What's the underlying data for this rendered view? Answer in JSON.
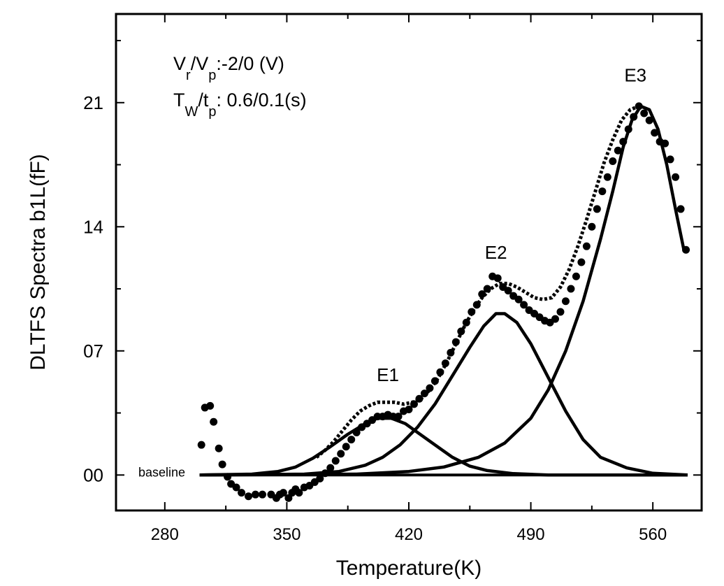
{
  "chart_data": {
    "type": "scatter",
    "title": "",
    "xlabel": "Temperature(K)",
    "ylabel": "DLTFS Spectra b1L(fF)",
    "xlim": [
      252,
      588
    ],
    "ylim": [
      -2,
      26
    ],
    "x_ticks": [
      280,
      350,
      420,
      490,
      560
    ],
    "y_ticks": [
      {
        "value": 0,
        "label": "00"
      },
      {
        "value": 7,
        "label": "07"
      },
      {
        "value": 14,
        "label": "14"
      },
      {
        "value": 21,
        "label": "21"
      }
    ],
    "grid": false,
    "annotations": {
      "conditions": [
        {
          "main": [
            "V",
            "/V",
            ":-2/0 (V)"
          ],
          "subs": [
            "r",
            "p"
          ]
        },
        {
          "main": [
            "T",
            "/t",
            ": 0.6/0.1(s)"
          ],
          "subs": [
            "W",
            "p"
          ]
        }
      ],
      "peaks": [
        {
          "label": "E1",
          "x": 408,
          "y": 5.3
        },
        {
          "label": "E2",
          "x": 470,
          "y": 12.2
        },
        {
          "label": "E3",
          "x": 550,
          "y": 22.2
        }
      ],
      "baseline_label": "baseline"
    },
    "series": [
      {
        "kind": "measured",
        "marker": "circle",
        "points": [
          [
            301,
            1.7
          ],
          [
            303,
            3.8
          ],
          [
            306,
            3.9
          ],
          [
            308,
            3.0
          ],
          [
            311,
            1.5
          ],
          [
            313,
            0.6
          ],
          [
            316,
            -0.1
          ],
          [
            318,
            -0.5
          ],
          [
            321,
            -0.7
          ],
          [
            324,
            -1.0
          ],
          [
            328,
            -1.2
          ],
          [
            332,
            -1.1
          ],
          [
            336,
            -1.1
          ],
          [
            341,
            -1.1
          ],
          [
            344,
            -1.3
          ],
          [
            346,
            -1.1
          ],
          [
            348,
            -1.0
          ],
          [
            351,
            -1.3
          ],
          [
            353,
            -1.0
          ],
          [
            355,
            -0.8
          ],
          [
            357,
            -1.0
          ],
          [
            360,
            -0.7
          ],
          [
            363,
            -0.6
          ],
          [
            366,
            -0.4
          ],
          [
            369,
            -0.2
          ],
          [
            372,
            0.1
          ],
          [
            375,
            0.4
          ],
          [
            378,
            0.8
          ],
          [
            381,
            1.2
          ],
          [
            384,
            1.6
          ],
          [
            387,
            2.0
          ],
          [
            390,
            2.4
          ],
          [
            393,
            2.7
          ],
          [
            396,
            2.9
          ],
          [
            399,
            3.1
          ],
          [
            402,
            3.3
          ],
          [
            405,
            3.3
          ],
          [
            408,
            3.4
          ],
          [
            411,
            3.3
          ],
          [
            414,
            3.3
          ],
          [
            417,
            3.6
          ],
          [
            420,
            3.7
          ],
          [
            423,
            4.0
          ],
          [
            426,
            4.3
          ],
          [
            429,
            4.6
          ],
          [
            432,
            4.9
          ],
          [
            435,
            5.3
          ],
          [
            438,
            5.8
          ],
          [
            441,
            6.3
          ],
          [
            444,
            6.9
          ],
          [
            447,
            7.5
          ],
          [
            450,
            8.1
          ],
          [
            453,
            8.6
          ],
          [
            456,
            9.2
          ],
          [
            459,
            9.6
          ],
          [
            462,
            10.2
          ],
          [
            465,
            10.5
          ],
          [
            468,
            11.2
          ],
          [
            471,
            11.1
          ],
          [
            474,
            10.6
          ],
          [
            477,
            10.4
          ],
          [
            480,
            10.1
          ],
          [
            483,
            9.9
          ],
          [
            486,
            9.6
          ],
          [
            489,
            9.3
          ],
          [
            492,
            9.1
          ],
          [
            495,
            8.9
          ],
          [
            498,
            8.7
          ],
          [
            501,
            8.6
          ],
          [
            504,
            8.8
          ],
          [
            507,
            9.2
          ],
          [
            510,
            9.8
          ],
          [
            513,
            10.5
          ],
          [
            516,
            11.2
          ],
          [
            519,
            12.0
          ],
          [
            522,
            12.9
          ],
          [
            525,
            14.0
          ],
          [
            528,
            15.0
          ],
          [
            531,
            16.0
          ],
          [
            534,
            16.8
          ],
          [
            537,
            17.7
          ],
          [
            540,
            18.3
          ],
          [
            543,
            18.8
          ],
          [
            546,
            19.5
          ],
          [
            549,
            20.2
          ],
          [
            552,
            20.8
          ],
          [
            555,
            20.4
          ],
          [
            558,
            20.0
          ],
          [
            561,
            19.3
          ],
          [
            564,
            18.8
          ],
          [
            567,
            18.7
          ],
          [
            570,
            17.8
          ],
          [
            573,
            16.8
          ],
          [
            576,
            15.0
          ],
          [
            579,
            12.7
          ]
        ]
      },
      {
        "kind": "fit-sum",
        "line": "dotted",
        "points": [
          [
            367,
            1.0
          ],
          [
            372,
            1.4
          ],
          [
            377,
            1.9
          ],
          [
            382,
            2.5
          ],
          [
            387,
            3.1
          ],
          [
            392,
            3.6
          ],
          [
            397,
            3.9
          ],
          [
            402,
            4.1
          ],
          [
            407,
            4.1
          ],
          [
            412,
            4.1
          ],
          [
            417,
            4.0
          ],
          [
            422,
            4.1
          ],
          [
            427,
            4.3
          ],
          [
            432,
            4.8
          ],
          [
            437,
            5.5
          ],
          [
            442,
            6.4
          ],
          [
            447,
            7.4
          ],
          [
            452,
            8.4
          ],
          [
            457,
            9.3
          ],
          [
            462,
            10.0
          ],
          [
            467,
            10.5
          ],
          [
            472,
            10.8
          ],
          [
            477,
            10.8
          ],
          [
            482,
            10.6
          ],
          [
            487,
            10.3
          ],
          [
            492,
            10.0
          ],
          [
            497,
            9.9
          ],
          [
            502,
            10.0
          ],
          [
            507,
            10.6
          ],
          [
            512,
            11.6
          ],
          [
            517,
            12.9
          ],
          [
            522,
            14.4
          ],
          [
            527,
            16.0
          ],
          [
            532,
            17.6
          ],
          [
            537,
            18.9
          ],
          [
            542,
            20.0
          ],
          [
            547,
            20.6
          ],
          [
            552,
            20.8
          ]
        ]
      },
      {
        "kind": "fit",
        "name": "E1",
        "line": "solid",
        "points": [
          [
            300,
            0.0
          ],
          [
            330,
            0.05
          ],
          [
            345,
            0.2
          ],
          [
            355,
            0.45
          ],
          [
            365,
            0.95
          ],
          [
            375,
            1.6
          ],
          [
            385,
            2.3
          ],
          [
            395,
            2.9
          ],
          [
            402,
            3.2
          ],
          [
            410,
            3.2
          ],
          [
            418,
            2.9
          ],
          [
            425,
            2.4
          ],
          [
            435,
            1.7
          ],
          [
            445,
            1.0
          ],
          [
            455,
            0.5
          ],
          [
            465,
            0.25
          ],
          [
            480,
            0.08
          ],
          [
            500,
            0.0
          ],
          [
            580,
            0.0
          ]
        ]
      },
      {
        "kind": "fit",
        "name": "E2",
        "line": "solid",
        "points": [
          [
            300,
            0.0
          ],
          [
            360,
            0.05
          ],
          [
            380,
            0.2
          ],
          [
            395,
            0.55
          ],
          [
            405,
            1.0
          ],
          [
            415,
            1.7
          ],
          [
            425,
            2.7
          ],
          [
            435,
            4.0
          ],
          [
            445,
            5.6
          ],
          [
            455,
            7.2
          ],
          [
            463,
            8.4
          ],
          [
            470,
            9.1
          ],
          [
            475,
            9.1
          ],
          [
            482,
            8.6
          ],
          [
            490,
            7.4
          ],
          [
            500,
            5.5
          ],
          [
            510,
            3.6
          ],
          [
            520,
            2.0
          ],
          [
            530,
            1.0
          ],
          [
            545,
            0.4
          ],
          [
            560,
            0.1
          ],
          [
            580,
            0.0
          ]
        ]
      },
      {
        "kind": "fit",
        "name": "E3",
        "line": "solid",
        "points": [
          [
            300,
            0.0
          ],
          [
            390,
            0.05
          ],
          [
            420,
            0.2
          ],
          [
            440,
            0.45
          ],
          [
            460,
            1.0
          ],
          [
            475,
            1.8
          ],
          [
            490,
            3.2
          ],
          [
            500,
            4.8
          ],
          [
            510,
            7.0
          ],
          [
            520,
            9.8
          ],
          [
            530,
            13.3
          ],
          [
            537,
            16.0
          ],
          [
            543,
            18.5
          ],
          [
            548,
            20.0
          ],
          [
            553,
            20.8
          ],
          [
            558,
            20.6
          ],
          [
            563,
            19.5
          ],
          [
            568,
            17.5
          ],
          [
            573,
            15.0
          ],
          [
            578,
            12.6
          ]
        ]
      },
      {
        "kind": "baseline",
        "line": "solid",
        "points": [
          [
            300,
            0.0
          ],
          [
            580,
            0.0
          ]
        ]
      }
    ]
  }
}
